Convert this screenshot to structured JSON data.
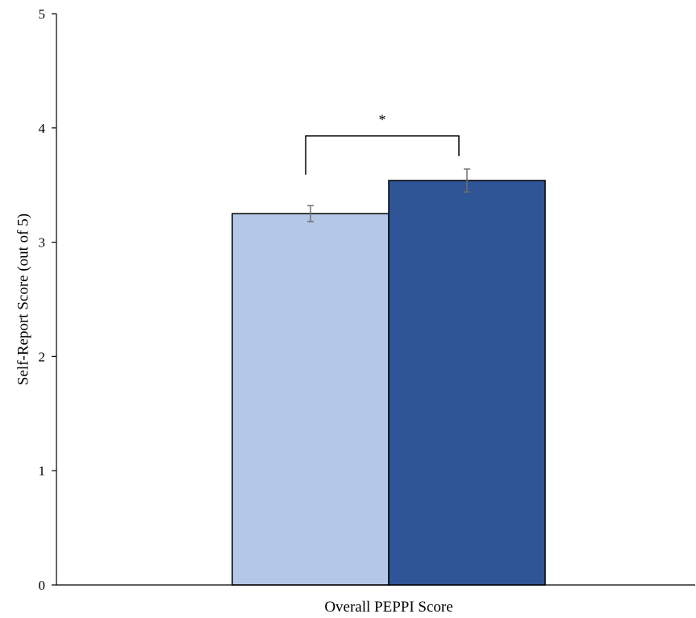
{
  "chart_data": {
    "type": "bar",
    "title": "",
    "xlabel": "",
    "ylabel": "Self-Report Score (out of 5)",
    "ylim": [
      0,
      5
    ],
    "yticks": [
      0,
      1,
      2,
      3,
      4,
      5
    ],
    "grid": false,
    "legend": "none",
    "categories": [
      "Overall PEPPI Score"
    ],
    "series": [
      {
        "values": [
          3.25
        ],
        "errors": [
          0.07
        ],
        "color": "#b4c7e7"
      },
      {
        "values": [
          3.54
        ],
        "errors": [
          0.1
        ],
        "color": "#2f5597"
      }
    ],
    "annotations": [
      {
        "type": "significance-bracket",
        "between_series": [
          0,
          1
        ],
        "category": 0,
        "label": "*",
        "level": 3.93
      }
    ]
  }
}
